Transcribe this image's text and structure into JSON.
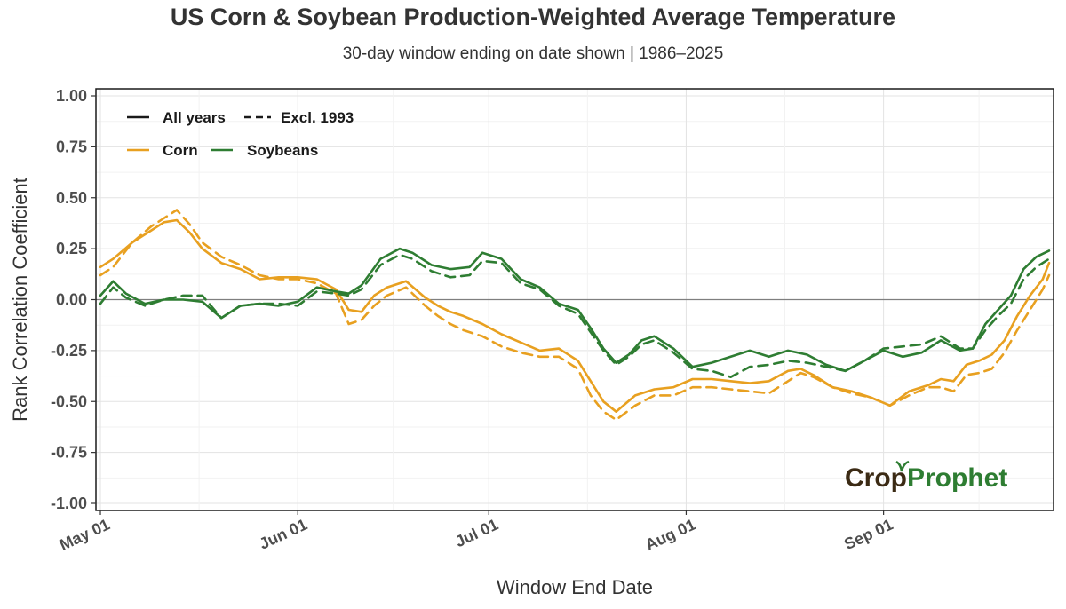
{
  "title": "US Corn & Soybean Production-Weighted Average Temperature",
  "subtitle": "30-day window ending on date shown | 1986–2025",
  "logo": {
    "text_part1": "Crop",
    "text_part2": "Prophet"
  },
  "chart_data": {
    "type": "line",
    "title": "US Corn & Soybean Production-Weighted Average Temperature",
    "subtitle": "30-day window ending on date shown | 1986–2025",
    "xlabel": "Window End Date",
    "ylabel": "Rank Correlation Coefficient",
    "ylim": [
      -1.0,
      1.0
    ],
    "y_ticks": [
      "1.00",
      "0.75",
      "0.50",
      "0.25",
      "0.00",
      "-0.25",
      "-0.50",
      "-0.75",
      "-1.00"
    ],
    "y_tick_values": [
      1.0,
      0.75,
      0.5,
      0.25,
      0.0,
      -0.25,
      -0.5,
      -0.75,
      -1.0
    ],
    "xlim_day_of_year": [
      120,
      270
    ],
    "x_ticks": [
      "May 01",
      "Jun 01",
      "Jul 01",
      "Aug 01",
      "Sep 01"
    ],
    "x_tick_dates": [
      "05-01",
      "06-01",
      "07-01",
      "08-01",
      "09-01"
    ],
    "grid": true,
    "reference_line_y": 0,
    "legend_position": "top-left",
    "legend": {
      "linestyles": [
        {
          "label": "All years",
          "style": "solid"
        },
        {
          "label": "Excl. 1993",
          "style": "dashed"
        }
      ],
      "crops": [
        {
          "label": "Corn",
          "color": "#e8a020"
        },
        {
          "label": "Soybeans",
          "color": "#2e7d32"
        }
      ]
    },
    "series": [
      {
        "name": "Corn - All years",
        "color": "#e8a020",
        "style": "solid",
        "x": [
          "05-01",
          "05-03",
          "05-06",
          "05-09",
          "05-11",
          "05-13",
          "05-15",
          "05-17",
          "05-20",
          "05-23",
          "05-26",
          "05-29",
          "06-01",
          "06-04",
          "06-07",
          "06-09",
          "06-11",
          "06-13",
          "06-15",
          "06-18",
          "06-21",
          "06-23",
          "06-25",
          "06-27",
          "06-30",
          "07-03",
          "07-06",
          "07-09",
          "07-12",
          "07-15",
          "07-17",
          "07-19",
          "07-21",
          "07-24",
          "07-27",
          "07-30",
          "08-02",
          "08-05",
          "08-08",
          "08-11",
          "08-14",
          "08-17",
          "08-19",
          "08-21",
          "08-24",
          "08-27",
          "08-30",
          "09-02",
          "09-05",
          "09-08",
          "09-10",
          "09-12",
          "09-14",
          "09-16",
          "09-18",
          "09-20",
          "09-22",
          "09-24",
          "09-26",
          "09-27"
        ],
        "y": [
          0.16,
          0.2,
          0.28,
          0.34,
          0.38,
          0.39,
          0.33,
          0.25,
          0.18,
          0.15,
          0.1,
          0.11,
          0.11,
          0.1,
          0.05,
          -0.05,
          -0.06,
          0.02,
          0.06,
          0.09,
          0.01,
          -0.03,
          -0.06,
          -0.08,
          -0.12,
          -0.17,
          -0.21,
          -0.25,
          -0.24,
          -0.3,
          -0.4,
          -0.5,
          -0.55,
          -0.47,
          -0.44,
          -0.43,
          -0.39,
          -0.39,
          -0.4,
          -0.41,
          -0.4,
          -0.35,
          -0.34,
          -0.37,
          -0.43,
          -0.45,
          -0.48,
          -0.52,
          -0.45,
          -0.42,
          -0.39,
          -0.4,
          -0.32,
          -0.3,
          -0.27,
          -0.2,
          -0.08,
          0.02,
          0.1,
          0.18
        ]
      },
      {
        "name": "Corn - Excl. 1993",
        "color": "#e8a020",
        "style": "dashed",
        "x": [
          "05-01",
          "05-03",
          "05-06",
          "05-09",
          "05-11",
          "05-13",
          "05-15",
          "05-17",
          "05-20",
          "05-23",
          "05-26",
          "05-29",
          "06-01",
          "06-04",
          "06-07",
          "06-09",
          "06-11",
          "06-13",
          "06-15",
          "06-18",
          "06-21",
          "06-23",
          "06-25",
          "06-27",
          "06-30",
          "07-03",
          "07-06",
          "07-09",
          "07-12",
          "07-15",
          "07-17",
          "07-19",
          "07-21",
          "07-24",
          "07-27",
          "07-30",
          "08-02",
          "08-05",
          "08-08",
          "08-11",
          "08-14",
          "08-17",
          "08-19",
          "08-21",
          "08-24",
          "08-27",
          "08-30",
          "09-02",
          "09-05",
          "09-08",
          "09-10",
          "09-12",
          "09-14",
          "09-16",
          "09-18",
          "09-20",
          "09-22",
          "09-24",
          "09-26",
          "09-27"
        ],
        "y": [
          0.12,
          0.16,
          0.28,
          0.36,
          0.4,
          0.44,
          0.37,
          0.28,
          0.21,
          0.17,
          0.12,
          0.1,
          0.1,
          0.08,
          0.03,
          -0.12,
          -0.1,
          -0.03,
          0.02,
          0.06,
          -0.03,
          -0.08,
          -0.12,
          -0.15,
          -0.18,
          -0.23,
          -0.26,
          -0.28,
          -0.28,
          -0.34,
          -0.47,
          -0.55,
          -0.59,
          -0.52,
          -0.47,
          -0.47,
          -0.43,
          -0.43,
          -0.44,
          -0.45,
          -0.46,
          -0.4,
          -0.36,
          -0.38,
          -0.43,
          -0.46,
          -0.48,
          -0.52,
          -0.47,
          -0.43,
          -0.43,
          -0.45,
          -0.37,
          -0.36,
          -0.34,
          -0.26,
          -0.15,
          -0.05,
          0.05,
          0.12
        ]
      },
      {
        "name": "Soybeans - All years",
        "color": "#2e7d32",
        "style": "solid",
        "x": [
          "05-01",
          "05-03",
          "05-05",
          "05-08",
          "05-11",
          "05-14",
          "05-17",
          "05-20",
          "05-23",
          "05-26",
          "05-29",
          "06-01",
          "06-04",
          "06-07",
          "06-09",
          "06-11",
          "06-14",
          "06-17",
          "06-19",
          "06-22",
          "06-25",
          "06-28",
          "06-30",
          "07-03",
          "07-06",
          "07-09",
          "07-12",
          "07-15",
          "07-17",
          "07-19",
          "07-21",
          "07-23",
          "07-25",
          "07-27",
          "07-30",
          "08-02",
          "08-05",
          "08-08",
          "08-11",
          "08-14",
          "08-17",
          "08-20",
          "08-23",
          "08-26",
          "08-29",
          "09-01",
          "09-04",
          "09-07",
          "09-10",
          "09-13",
          "09-15",
          "09-17",
          "09-19",
          "09-21",
          "09-23",
          "09-25",
          "09-27"
        ],
        "y": [
          0.02,
          0.09,
          0.03,
          -0.02,
          0.0,
          0.0,
          -0.01,
          -0.09,
          -0.03,
          -0.02,
          -0.03,
          -0.01,
          0.06,
          0.04,
          0.03,
          0.07,
          0.2,
          0.25,
          0.23,
          0.17,
          0.15,
          0.16,
          0.23,
          0.2,
          0.1,
          0.06,
          -0.02,
          -0.05,
          -0.14,
          -0.24,
          -0.31,
          -0.27,
          -0.2,
          -0.18,
          -0.24,
          -0.33,
          -0.31,
          -0.28,
          -0.25,
          -0.28,
          -0.25,
          -0.27,
          -0.32,
          -0.35,
          -0.3,
          -0.25,
          -0.28,
          -0.26,
          -0.2,
          -0.25,
          -0.24,
          -0.12,
          -0.05,
          0.02,
          0.15,
          0.21,
          0.24
        ]
      },
      {
        "name": "Soybeans - Excl. 1993",
        "color": "#2e7d32",
        "style": "dashed",
        "x": [
          "05-01",
          "05-03",
          "05-05",
          "05-08",
          "05-11",
          "05-14",
          "05-17",
          "05-20",
          "05-23",
          "05-26",
          "05-29",
          "06-01",
          "06-04",
          "06-07",
          "06-09",
          "06-11",
          "06-14",
          "06-17",
          "06-19",
          "06-22",
          "06-25",
          "06-28",
          "06-30",
          "07-03",
          "07-06",
          "07-09",
          "07-12",
          "07-15",
          "07-17",
          "07-19",
          "07-21",
          "07-23",
          "07-25",
          "07-27",
          "07-30",
          "08-02",
          "08-05",
          "08-08",
          "08-11",
          "08-14",
          "08-17",
          "08-20",
          "08-23",
          "08-26",
          "08-29",
          "09-01",
          "09-04",
          "09-07",
          "09-10",
          "09-13",
          "09-15",
          "09-17",
          "09-19",
          "09-21",
          "09-23",
          "09-25",
          "09-27"
        ],
        "y": [
          -0.02,
          0.06,
          0.01,
          -0.03,
          0.0,
          0.02,
          0.02,
          -0.09,
          -0.03,
          -0.02,
          -0.02,
          -0.03,
          0.04,
          0.03,
          0.02,
          0.05,
          0.17,
          0.22,
          0.2,
          0.14,
          0.11,
          0.12,
          0.19,
          0.18,
          0.08,
          0.05,
          -0.03,
          -0.07,
          -0.16,
          -0.25,
          -0.32,
          -0.28,
          -0.22,
          -0.2,
          -0.26,
          -0.34,
          -0.35,
          -0.38,
          -0.33,
          -0.32,
          -0.3,
          -0.31,
          -0.33,
          -0.35,
          -0.3,
          -0.24,
          -0.23,
          -0.22,
          -0.18,
          -0.24,
          -0.24,
          -0.15,
          -0.08,
          -0.02,
          0.1,
          0.16,
          0.2
        ]
      }
    ]
  }
}
